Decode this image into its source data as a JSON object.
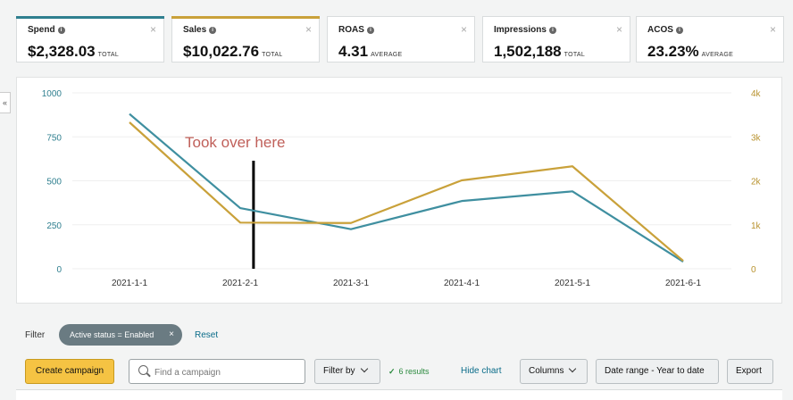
{
  "cards": [
    {
      "title": "Spend",
      "value": "$2,328.03",
      "suffix": "TOTAL",
      "accent": "#2f7f8f"
    },
    {
      "title": "Sales",
      "value": "$10,022.76",
      "suffix": "TOTAL",
      "accent": "#c9a13a"
    },
    {
      "title": "ROAS",
      "value": "4.31",
      "suffix": "AVERAGE",
      "accent": ""
    },
    {
      "title": "Impressions",
      "value": "1,502,188",
      "suffix": "TOTAL",
      "accent": ""
    },
    {
      "title": "ACOS",
      "value": "23.23%",
      "suffix": "AVERAGE",
      "accent": ""
    }
  ],
  "chart_data": {
    "type": "line",
    "x": [
      "2021-1-1",
      "2021-2-1",
      "2021-3-1",
      "2021-4-1",
      "2021-5-1",
      "2021-6-1"
    ],
    "yleft": {
      "ticks": [
        "1000",
        "750",
        "500",
        "250",
        "0"
      ],
      "range": [
        0,
        1000
      ]
    },
    "yright": {
      "ticks": [
        "4k",
        "3k",
        "2k",
        "1k",
        "0"
      ],
      "range": [
        0,
        4000
      ]
    },
    "series": [
      {
        "axis": "left",
        "color": "#3f8fa0",
        "values": [
          880,
          345,
          225,
          385,
          440,
          40
        ]
      },
      {
        "axis": "right",
        "color": "#c9a13a",
        "values": [
          3330,
          1050,
          1040,
          2010,
          2330,
          180
        ]
      }
    ],
    "annotation": {
      "text": "Took over here",
      "x_index": 1.12,
      "color": "#c0605a"
    }
  },
  "filter": {
    "label": "Filter",
    "chip": "Active status = Enabled",
    "reset": "Reset"
  },
  "toolbar": {
    "create": "Create campaign",
    "search_placeholder": "Find a campaign",
    "filter_by": "Filter by",
    "results": "6 results",
    "hide_chart": "Hide chart",
    "columns": "Columns",
    "date_range": "Date range - Year to date",
    "export": "Export"
  }
}
